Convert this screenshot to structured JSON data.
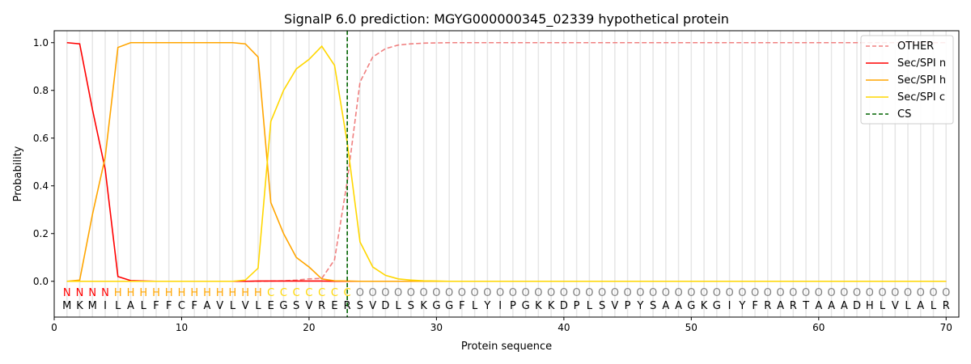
{
  "chart_data": {
    "type": "line",
    "title": "SignalP 6.0 prediction: MGYG000000345_02339 hypothetical protein",
    "xlabel": "Protein sequence",
    "ylabel": "Probability",
    "xlim": [
      0,
      71
    ],
    "ylim": [
      -0.15,
      1.05
    ],
    "xticks": [
      "0",
      "10",
      "20",
      "30",
      "40",
      "50",
      "60",
      "70"
    ],
    "yticks": [
      "0.0",
      "0.2",
      "0.4",
      "0.6",
      "0.8",
      "1.0"
    ],
    "legend_position": "top-right",
    "sequence": [
      "M",
      "K",
      "M",
      "I",
      "L",
      "A",
      "L",
      "F",
      "F",
      "C",
      "F",
      "A",
      "V",
      "L",
      "V",
      "L",
      "E",
      "G",
      "S",
      "V",
      "R",
      "E",
      "R",
      "S",
      "V",
      "D",
      "L",
      "S",
      "K",
      "G",
      "G",
      "F",
      "L",
      "Y",
      "I",
      "P",
      "G",
      "K",
      "K",
      "D",
      "P",
      "L",
      "S",
      "V",
      "P",
      "Y",
      "S",
      "A",
      "A",
      "G",
      "K",
      "G",
      "I",
      "Y",
      "F",
      "R",
      "A",
      "R",
      "T",
      "A",
      "A",
      "A",
      "D",
      "H",
      "L",
      "V",
      "L",
      "A",
      "L",
      "R"
    ],
    "labels": "NNNNHHHHHHHHHHHHCCCCCCCOOOOOOOOOOOOOOOOOOOOOOOOOOOOOOOOOOOOOOOOOOOOOOO",
    "label_colors": {
      "N": "#ff0000",
      "H": "#ffa500",
      "C": "#ffd700",
      "O": "#808080"
    },
    "series": [
      {
        "name": "OTHER",
        "color": "#f08080",
        "dash": true,
        "values": [
          0,
          0,
          0,
          0,
          0,
          0,
          0,
          0,
          0,
          0,
          0,
          0,
          0,
          0,
          0,
          0,
          0.001,
          0.002,
          0.005,
          0.01,
          0.012,
          0.09,
          0.42,
          0.835,
          0.94,
          0.975,
          0.99,
          0.995,
          0.998,
          0.999,
          1,
          1,
          1,
          1,
          1,
          1,
          1,
          1,
          1,
          1,
          1,
          1,
          1,
          1,
          1,
          1,
          1,
          1,
          1,
          1,
          1,
          1,
          1,
          1,
          1,
          1,
          1,
          1,
          1,
          1,
          1,
          1,
          1,
          1,
          1,
          1,
          1,
          1,
          1,
          1
        ]
      },
      {
        "name": "Sec/SPI n",
        "color": "#ff0000",
        "values": [
          1.0,
          0.995,
          0.72,
          0.47,
          0.02,
          0.003,
          0.001,
          0,
          0,
          0,
          0,
          0,
          0,
          0,
          0,
          0.001,
          0.001,
          0.001,
          0.001,
          0.001,
          0.001,
          0,
          0,
          0,
          0,
          0,
          0,
          0,
          0,
          0,
          0,
          0,
          0,
          0,
          0,
          0,
          0,
          0,
          0,
          0,
          0,
          0,
          0,
          0,
          0,
          0,
          0,
          0,
          0,
          0,
          0,
          0,
          0,
          0,
          0,
          0,
          0,
          0,
          0,
          0,
          0,
          0,
          0,
          0,
          0,
          0,
          0,
          0,
          0,
          0
        ]
      },
      {
        "name": "Sec/SPI h",
        "color": "#ffa500",
        "values": [
          0,
          0.005,
          0.28,
          0.52,
          0.98,
          1.0,
          1.0,
          1.0,
          1.0,
          1.0,
          1.0,
          1.0,
          1.0,
          1.0,
          0.995,
          0.94,
          0.33,
          0.2,
          0.1,
          0.06,
          0.01,
          0.002,
          0.001,
          0,
          0,
          0,
          0,
          0,
          0,
          0,
          0,
          0,
          0,
          0,
          0,
          0,
          0,
          0,
          0,
          0,
          0,
          0,
          0,
          0,
          0,
          0,
          0,
          0,
          0,
          0,
          0,
          0,
          0,
          0,
          0,
          0,
          0,
          0,
          0,
          0,
          0,
          0,
          0,
          0,
          0,
          0,
          0,
          0,
          0,
          0
        ]
      },
      {
        "name": "Sec/SPI c",
        "color": "#ffd700",
        "values": [
          0,
          0,
          0,
          0,
          0,
          0,
          0,
          0,
          0,
          0,
          0,
          0,
          0,
          0,
          0.005,
          0.055,
          0.67,
          0.8,
          0.89,
          0.93,
          0.985,
          0.905,
          0.58,
          0.165,
          0.06,
          0.025,
          0.01,
          0.005,
          0.002,
          0.001,
          0,
          0,
          0,
          0,
          0,
          0,
          0,
          0,
          0,
          0,
          0,
          0,
          0,
          0,
          0,
          0,
          0,
          0,
          0,
          0,
          0,
          0,
          0,
          0,
          0,
          0,
          0,
          0,
          0,
          0,
          0,
          0,
          0,
          0,
          0,
          0,
          0,
          0,
          0,
          0
        ]
      }
    ],
    "cs": {
      "name": "CS",
      "position": 23,
      "color": "#006400"
    }
  }
}
